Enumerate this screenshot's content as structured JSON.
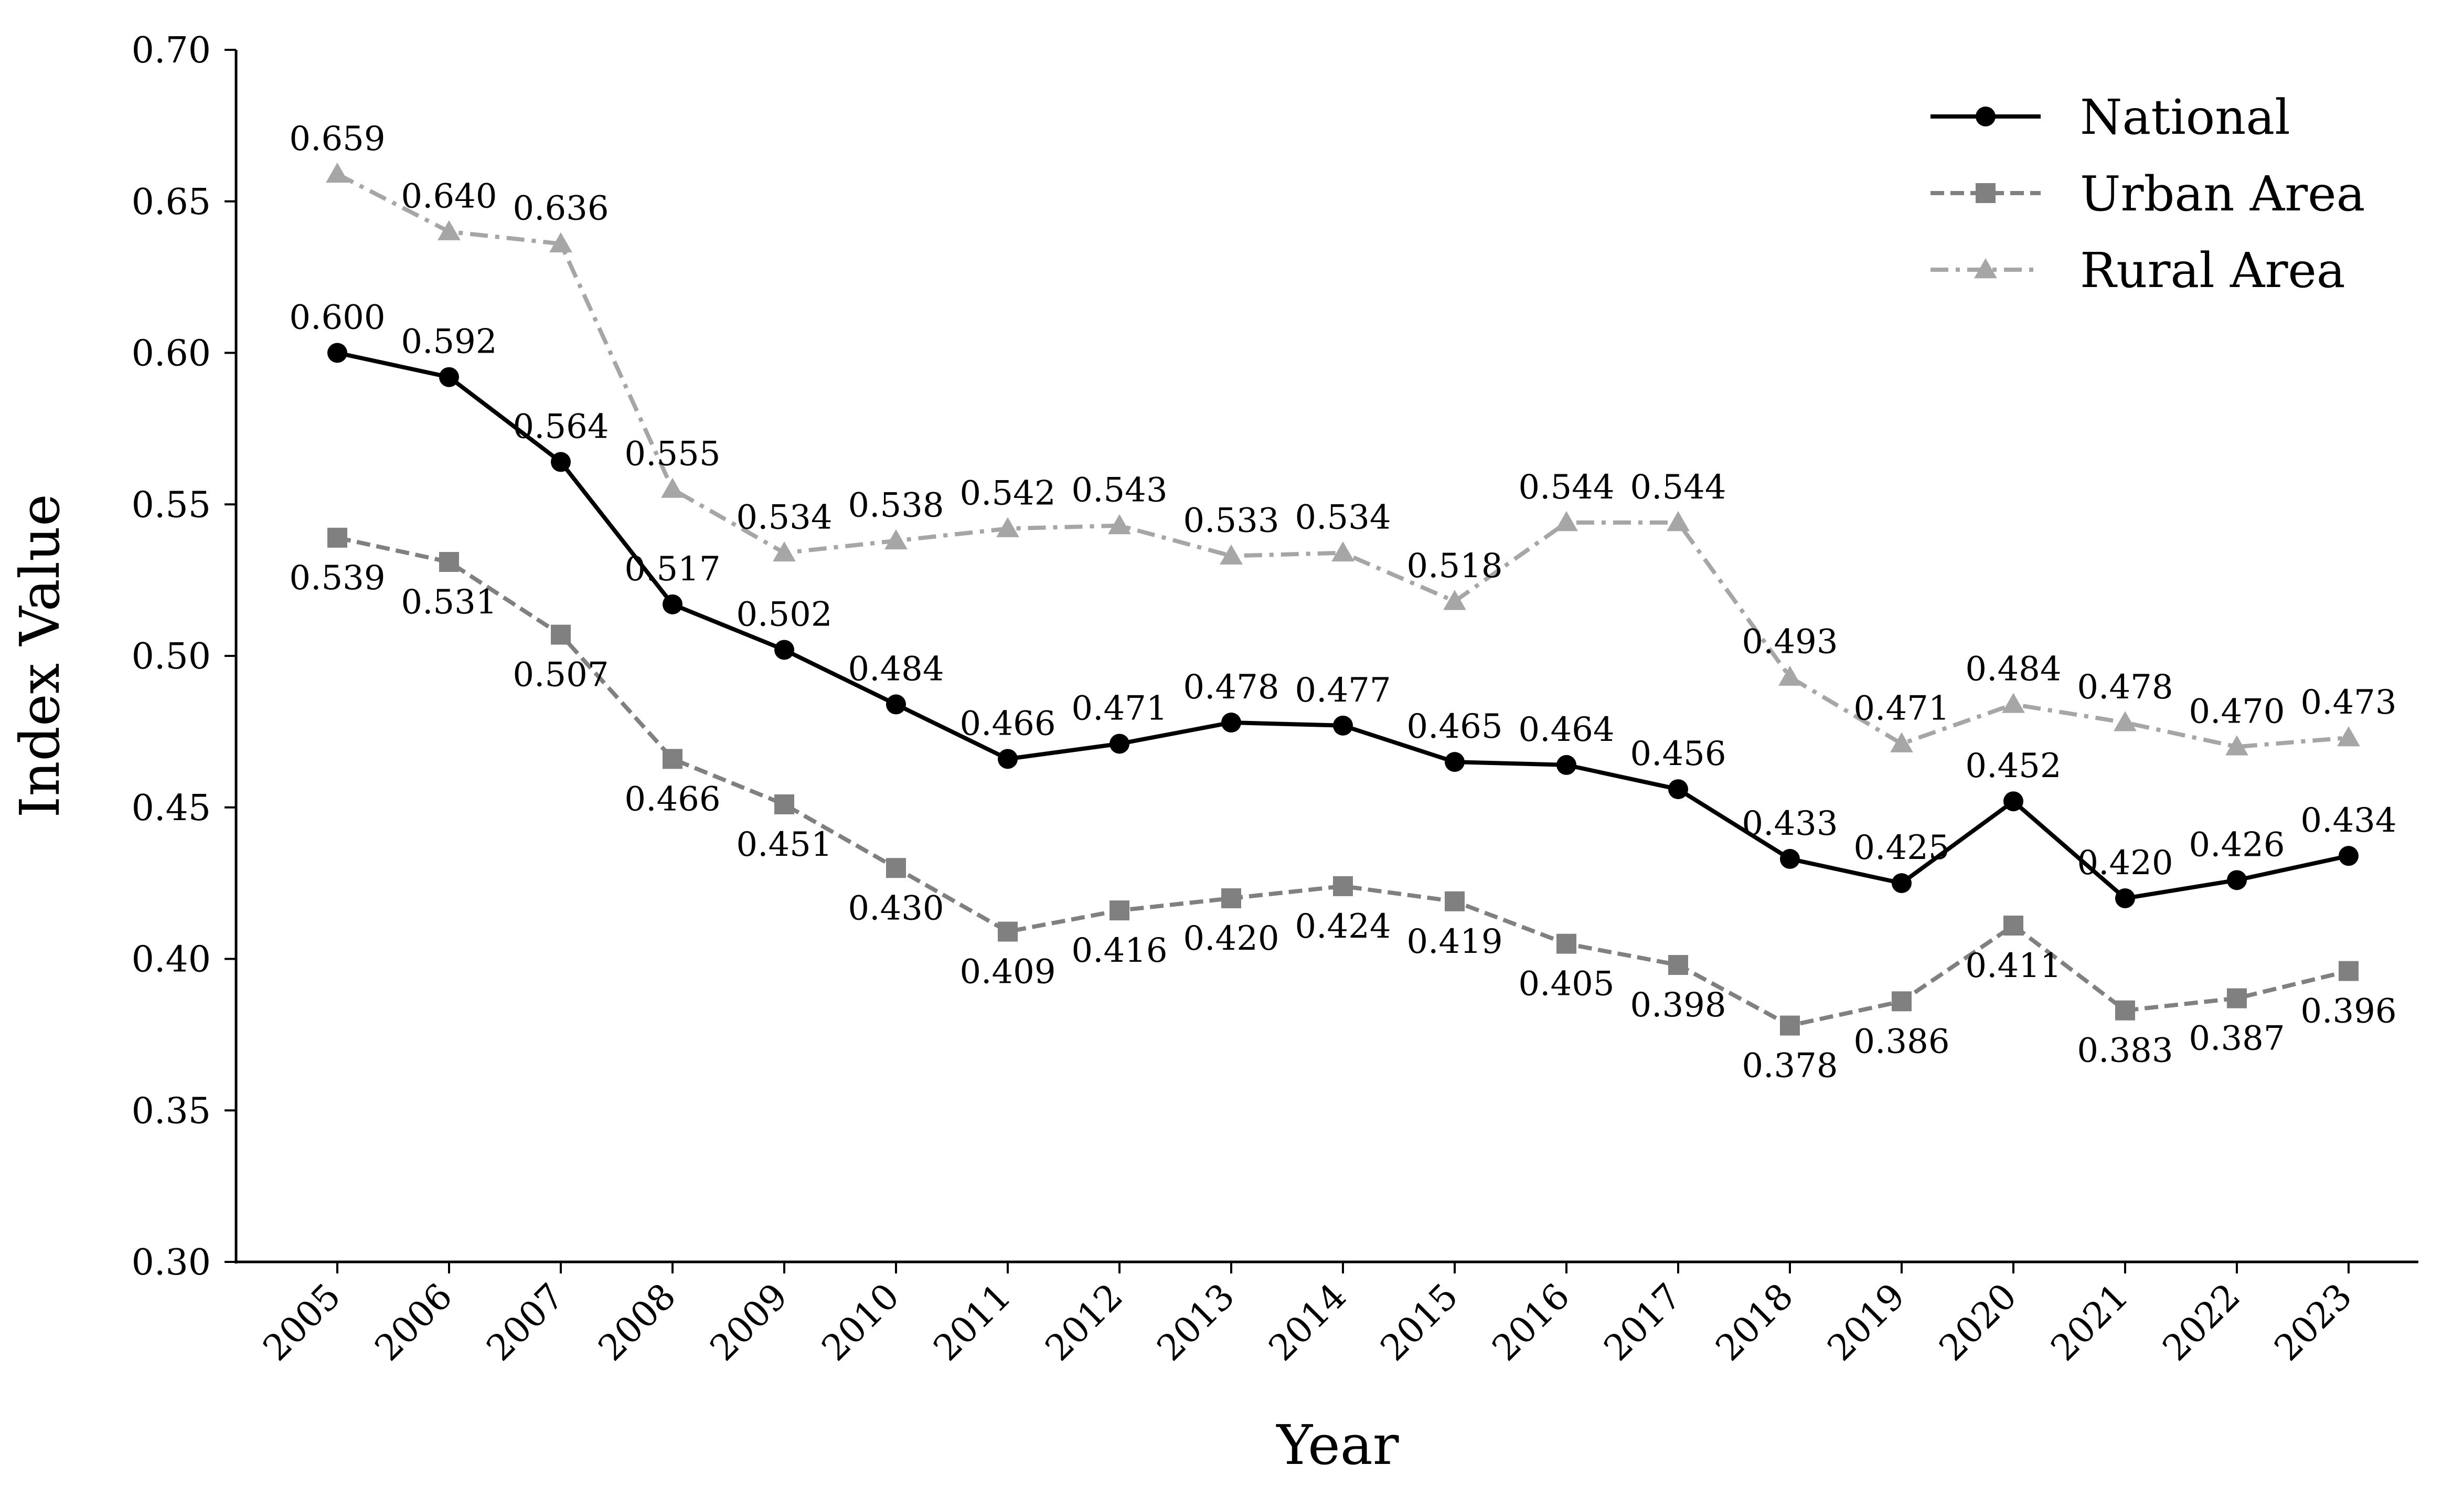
{
  "chart_data": {
    "type": "line",
    "xlabel": "Year",
    "ylabel": "Index Value",
    "x": [
      "2005",
      "2006",
      "2007",
      "2008",
      "2009",
      "2010",
      "2011",
      "2012",
      "2013",
      "2014",
      "2015",
      "2016",
      "2017",
      "2018",
      "2019",
      "2020",
      "2021",
      "2022",
      "2023"
    ],
    "ylim": [
      0.3,
      0.7
    ],
    "yticks": [
      "0.30",
      "0.35",
      "0.40",
      "0.45",
      "0.50",
      "0.55",
      "0.60",
      "0.65",
      "0.70"
    ],
    "grid": false,
    "legend": "top-right",
    "series": [
      {
        "name": "National",
        "color": "#000000",
        "line_style": "solid",
        "marker": "circle",
        "label_position": "above",
        "values": [
          0.6,
          0.592,
          0.564,
          0.517,
          0.502,
          0.484,
          0.466,
          0.471,
          0.478,
          0.477,
          0.465,
          0.464,
          0.456,
          0.433,
          0.425,
          0.452,
          0.42,
          0.426,
          0.434
        ],
        "labels": [
          "0.600",
          "0.592",
          "0.564",
          "0.517",
          "0.502",
          "0.484",
          "0.466",
          "0.471",
          "0.478",
          "0.477",
          "0.465",
          "0.464",
          "0.456",
          "0.433",
          "0.425",
          "0.452",
          "0.420",
          "0.426",
          "0.434"
        ]
      },
      {
        "name": "Urban Area",
        "color": "#808080",
        "line_style": "dashed",
        "marker": "square",
        "label_position": "below",
        "values": [
          0.539,
          0.531,
          0.507,
          0.466,
          0.451,
          0.43,
          0.409,
          0.416,
          0.42,
          0.424,
          0.419,
          0.405,
          0.398,
          0.378,
          0.386,
          0.411,
          0.383,
          0.387,
          0.396
        ],
        "labels": [
          "0.539",
          "0.531",
          "0.507",
          "0.466",
          "0.451",
          "0.430",
          "0.409",
          "0.416",
          "0.420",
          "0.424",
          "0.419",
          "0.405",
          "0.398",
          "0.378",
          "0.386",
          "0.411",
          "0.383",
          "0.387",
          "0.396"
        ]
      },
      {
        "name": "Rural Area",
        "color": "#a6a6a6",
        "line_style": "dashdot",
        "marker": "triangle",
        "label_position": "above",
        "values": [
          0.659,
          0.64,
          0.636,
          0.555,
          0.534,
          0.538,
          0.542,
          0.543,
          0.533,
          0.534,
          0.518,
          0.544,
          0.544,
          0.493,
          0.471,
          0.484,
          0.478,
          0.47,
          0.473
        ],
        "labels": [
          "0.659",
          "0.640",
          "0.636",
          "0.555",
          "0.534",
          "0.538",
          "0.542",
          "0.543",
          "0.533",
          "0.534",
          "0.518",
          "0.544",
          "0.544",
          "0.493",
          "0.471",
          "0.484",
          "0.478",
          "0.470",
          "0.473"
        ]
      }
    ]
  }
}
